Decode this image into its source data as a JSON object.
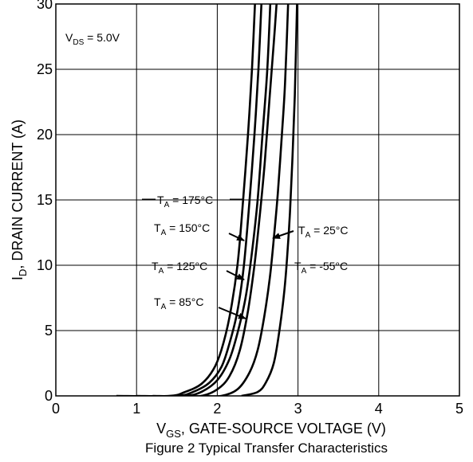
{
  "chart_data": {
    "type": "line",
    "title": "",
    "caption": "Figure 2 Typical Transfer Characteristics",
    "xlabel": {
      "main": "V",
      "sub": "GS",
      "rest": ", GATE-SOURCE VOLTAGE (V)"
    },
    "ylabel": {
      "main": "I",
      "sub": "D",
      "rest": ", DRAIN CURRENT (A)"
    },
    "xlim": [
      0,
      5
    ],
    "ylim": [
      0,
      30
    ],
    "xticks": [
      "0",
      "1",
      "2",
      "3",
      "4",
      "5"
    ],
    "yticks": [
      "0",
      "5",
      "10",
      "15",
      "20",
      "25",
      "30"
    ],
    "grid": true,
    "condition": {
      "main": "V",
      "sub": "DS",
      "rest": " = 5.0V"
    },
    "series": [
      {
        "name": "175°C",
        "temp_c": 175,
        "points": [
          [
            0.75,
            0
          ],
          [
            1.4,
            0
          ],
          [
            1.6,
            0.3
          ],
          [
            1.8,
            0.9
          ],
          [
            1.95,
            2.0
          ],
          [
            2.05,
            3.5
          ],
          [
            2.15,
            6.0
          ],
          [
            2.25,
            10.0
          ],
          [
            2.32,
            15.0
          ],
          [
            2.38,
            20.0
          ],
          [
            2.43,
            25.0
          ],
          [
            2.47,
            30.5
          ]
        ]
      },
      {
        "name": "150°C",
        "temp_c": 150,
        "points": [
          [
            1.0,
            0
          ],
          [
            1.5,
            0
          ],
          [
            1.7,
            0.3
          ],
          [
            1.9,
            1.0
          ],
          [
            2.05,
            2.2
          ],
          [
            2.15,
            4.0
          ],
          [
            2.25,
            6.5
          ],
          [
            2.33,
            10.0
          ],
          [
            2.4,
            15.0
          ],
          [
            2.46,
            20.0
          ],
          [
            2.51,
            25.0
          ],
          [
            2.55,
            30.5
          ]
        ]
      },
      {
        "name": "125°C",
        "temp_c": 125,
        "points": [
          [
            1.2,
            0
          ],
          [
            1.6,
            0
          ],
          [
            1.8,
            0.3
          ],
          [
            2.0,
            1.2
          ],
          [
            2.15,
            2.8
          ],
          [
            2.25,
            4.8
          ],
          [
            2.35,
            7.5
          ],
          [
            2.43,
            11.0
          ],
          [
            2.5,
            15.0
          ],
          [
            2.56,
            20.0
          ],
          [
            2.62,
            25.0
          ],
          [
            2.66,
            30.5
          ]
        ]
      },
      {
        "name": "85°C",
        "temp_c": 85,
        "points": [
          [
            1.5,
            0
          ],
          [
            1.8,
            0
          ],
          [
            2.0,
            0.5
          ],
          [
            2.15,
            1.5
          ],
          [
            2.28,
            3.5
          ],
          [
            2.38,
            6.5
          ],
          [
            2.46,
            10.0
          ],
          [
            2.53,
            14.0
          ],
          [
            2.59,
            18.0
          ],
          [
            2.65,
            23.0
          ],
          [
            2.7,
            27.0
          ],
          [
            2.74,
            30.5
          ]
        ]
      },
      {
        "name": "25°C",
        "temp_c": 25,
        "points": [
          [
            1.8,
            0
          ],
          [
            2.05,
            0
          ],
          [
            2.25,
            0.5
          ],
          [
            2.4,
            1.8
          ],
          [
            2.5,
            3.5
          ],
          [
            2.58,
            6.0
          ],
          [
            2.65,
            9.0
          ],
          [
            2.7,
            12.0
          ],
          [
            2.75,
            15.5
          ],
          [
            2.8,
            20.0
          ],
          [
            2.84,
            24.0
          ],
          [
            2.88,
            30.5
          ]
        ]
      },
      {
        "name": "-55°C",
        "temp_c": -55,
        "points": [
          [
            2.3,
            0
          ],
          [
            2.5,
            0.3
          ],
          [
            2.6,
            1.0
          ],
          [
            2.7,
            2.5
          ],
          [
            2.77,
            5.0
          ],
          [
            2.83,
            8.0
          ],
          [
            2.87,
            11.0
          ],
          [
            2.9,
            14.0
          ],
          [
            2.93,
            18.0
          ],
          [
            2.96,
            23.0
          ],
          [
            2.99,
            30.5
          ]
        ]
      }
    ],
    "annotations": [
      {
        "prefix": "T",
        "sub": "A",
        "value": " = 175°C",
        "series": "175°C"
      },
      {
        "prefix": "T",
        "sub": "A",
        "value": " = 150°C",
        "series": "150°C"
      },
      {
        "prefix": "T",
        "sub": "A",
        "value": " = 125°C",
        "series": "125°C"
      },
      {
        "prefix": "T",
        "sub": "A",
        "value": " = 85°C",
        "series": "85°C"
      },
      {
        "prefix": "T",
        "sub": "A",
        "value": " = 25°C",
        "series": "25°C"
      },
      {
        "prefix": "T",
        "sub": "A",
        "value": " = -55°C",
        "series": "-55°C"
      }
    ],
    "colors": {
      "line": "#000000",
      "grid": "#000000",
      "background": "#ffffff"
    }
  }
}
